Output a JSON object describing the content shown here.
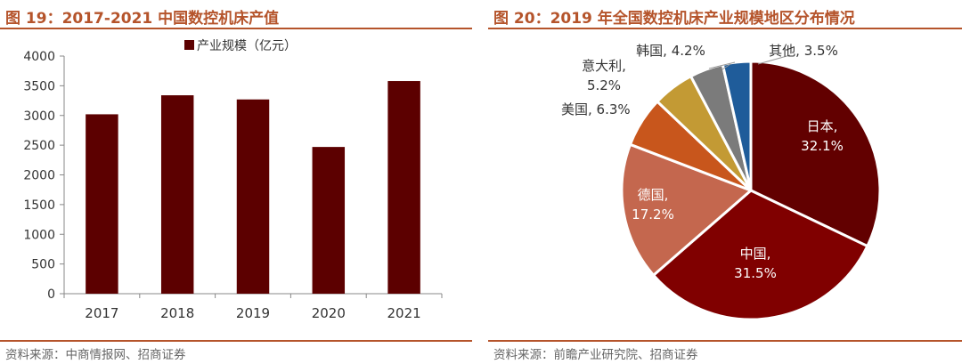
{
  "left": {
    "title": "图 19：2017-2021 中国数控机床产值",
    "source": "资料来源：中商情报网、招商证券"
  },
  "right": {
    "title": "图 20：2019 年全国数控机床产业规模地区分布情况",
    "source": "资料来源：前瞻产业研究院、招商证券"
  },
  "chart_data": [
    {
      "type": "bar",
      "title": "",
      "xlabel": "",
      "ylabel": "",
      "categories": [
        "2017",
        "2018",
        "2019",
        "2020",
        "2021"
      ],
      "series": [
        {
          "name": "产业规模（亿元）",
          "values": [
            3020,
            3340,
            3270,
            2470,
            3580
          ]
        }
      ],
      "ylim": [
        0,
        4000
      ],
      "yticks": [
        "0",
        "500",
        "1000",
        "1500",
        "2000",
        "2500",
        "3000",
        "3500",
        "4000"
      ],
      "grid": false,
      "legend": "top-center",
      "color": "#5c0000"
    },
    {
      "type": "pie",
      "title": "",
      "slices": [
        {
          "label": "日本",
          "value": 32.1,
          "display": "32.1%",
          "color": "#620000"
        },
        {
          "label": "中国",
          "value": 31.5,
          "display": "31.5%",
          "color": "#800000"
        },
        {
          "label": "德国",
          "value": 17.2,
          "display": "17.2%",
          "color": "#c4674e"
        },
        {
          "label": "美国",
          "value": 6.3,
          "display": "6.3%",
          "color": "#c8561c"
        },
        {
          "label": "意大利",
          "value": 5.2,
          "display": "5.2%",
          "color": "#c39a34"
        },
        {
          "label": "韩国",
          "value": 4.2,
          "display": "4.2%",
          "color": "#7b7b7b"
        },
        {
          "label": "其他",
          "value": 3.5,
          "display": "3.5%",
          "color": "#1f5c9a"
        }
      ],
      "legend": "none"
    }
  ]
}
